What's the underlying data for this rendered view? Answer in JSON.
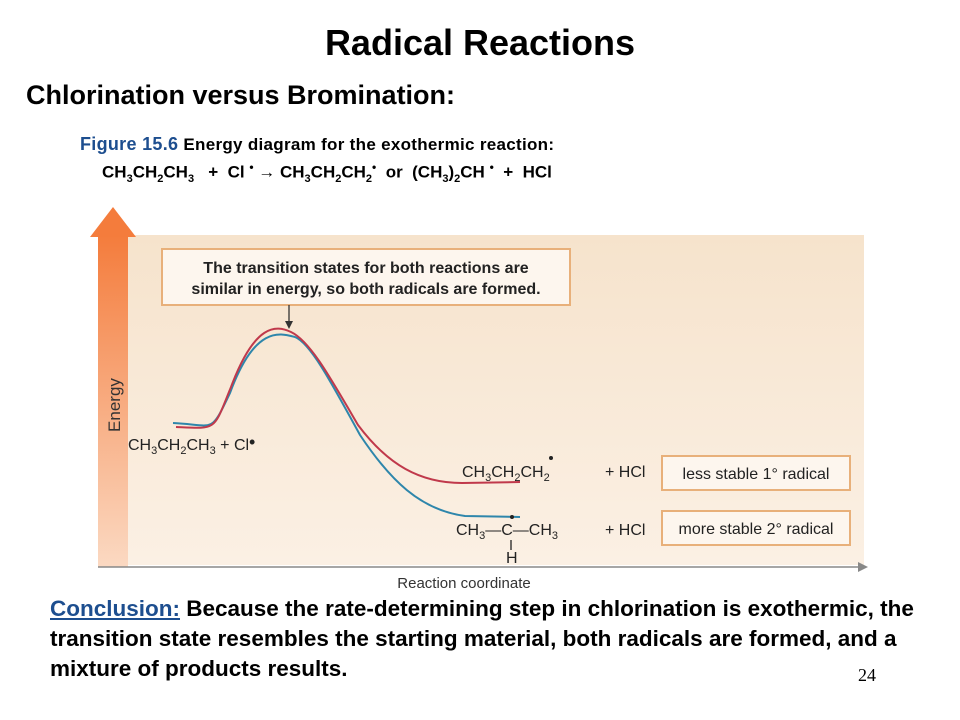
{
  "slide": {
    "title": "Radical Reactions",
    "subtitle": "Chlorination versus Bromination:",
    "page_number": "24"
  },
  "figure": {
    "label": "Figure 15.6",
    "caption": "Energy diagram for the exothermic reaction:",
    "reaction": "CH3CH2CH3 + Cl• → CH3CH2CH2• or (CH3)2CH• + HCl"
  },
  "diagram": {
    "y_axis_label": "Energy",
    "x_axis_label": "Reaction coordinate",
    "callout": "The transition states for both reactions are similar in energy, so both radicals are formed.",
    "reactant": "CH3CH2CH3 + Cl•",
    "product_primary": "CH3CH2ĊH2 + HCl",
    "product_secondary": "CH3–Ċ(H)–CH3 + HCl",
    "label_primary": "less stable 1° radical",
    "label_secondary": "more stable 2° radical",
    "colors": {
      "primary_curve": "#c0394b",
      "secondary_curve": "#2e86ab",
      "panel_background": "#f6e5d0",
      "arrow": "#f08a4b",
      "box_border": "#e8b07a"
    }
  },
  "conclusion": {
    "label": "Conclusion:",
    "text": " Because the rate-determining step in chlorination is exothermic, the transition state resembles the starting material, both radicals are formed, and a mixture of products results."
  }
}
